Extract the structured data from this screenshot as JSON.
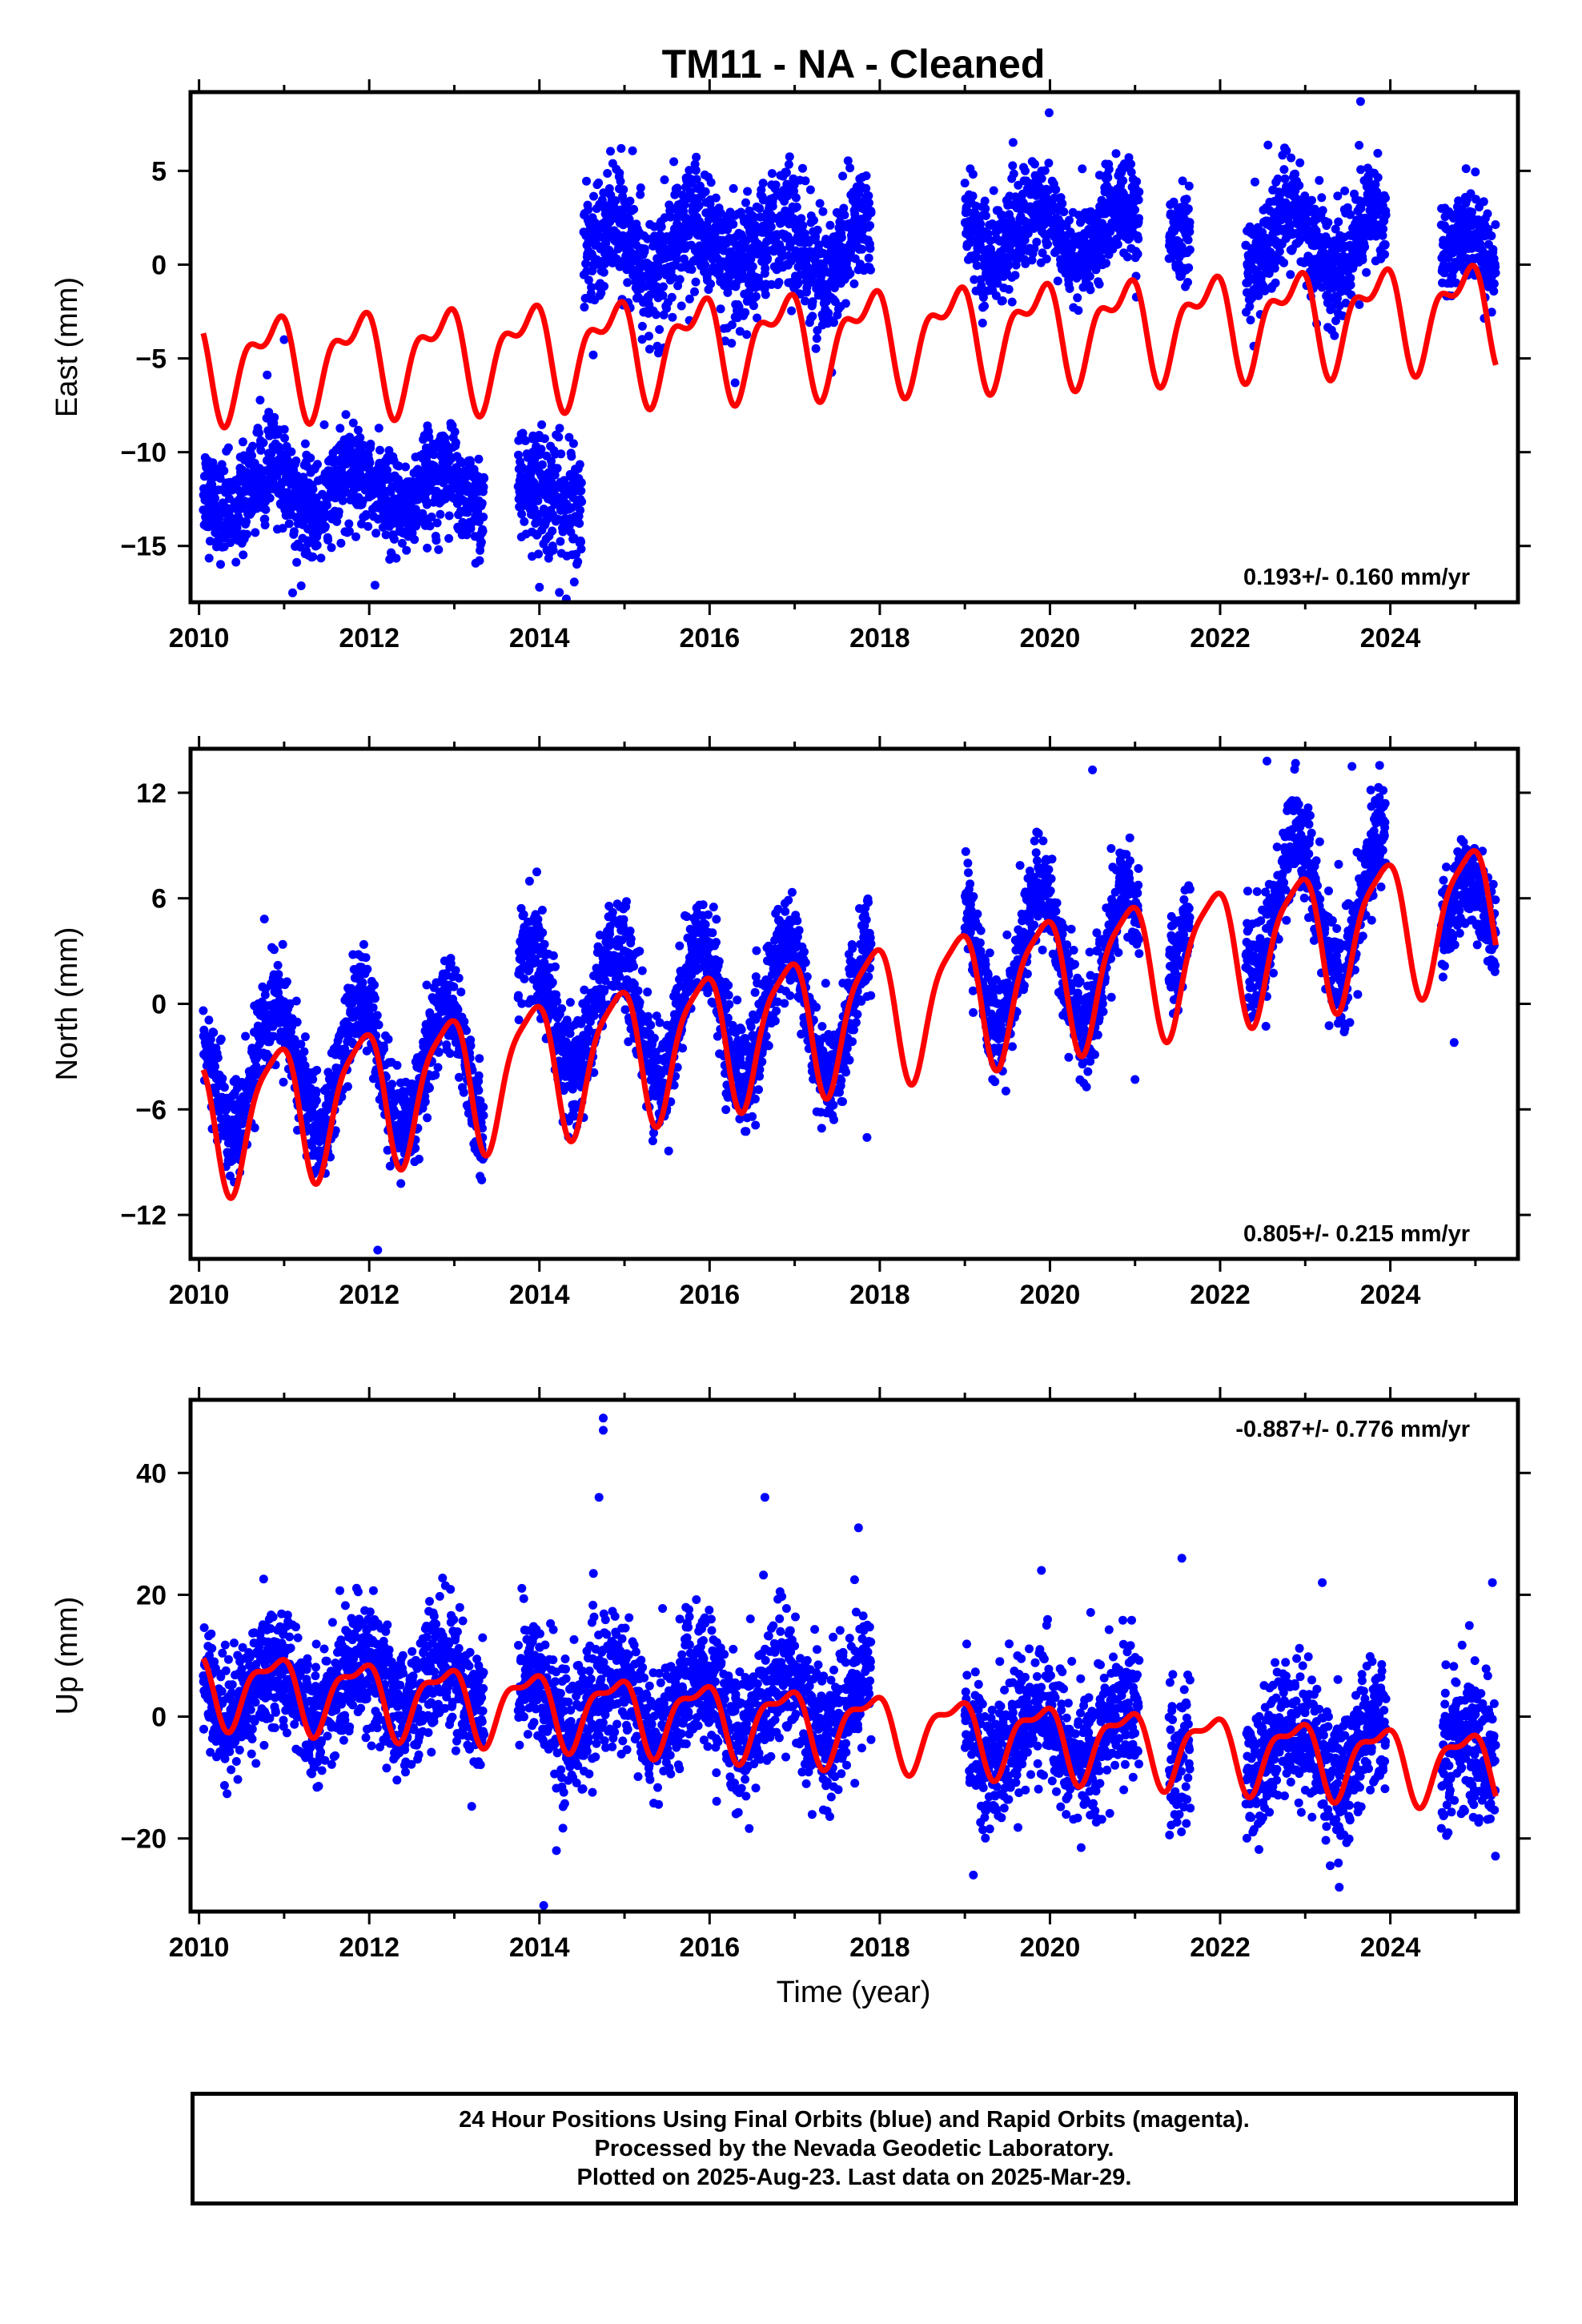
{
  "title": "TM11  - NA - Cleaned",
  "x_axis_label": "Time (year)",
  "footer": {
    "line1": "24 Hour Positions Using Final Orbits (blue) and Rapid Orbits (magenta).",
    "line2": "Processed by the Nevada Geodetic Laboratory.",
    "line3": "Plotted on 2025-Aug-23. Last data on 2025-Mar-29."
  },
  "colors": {
    "points": "#0000ff",
    "model": "#ff0000",
    "frame": "#000000"
  },
  "chart_data": [
    {
      "type": "scatter",
      "component": "east",
      "ylabel": "East (mm)",
      "rate_label": "0.193+/- 0.160 mm/yr",
      "rate_position": "bottom-right",
      "xlim": [
        2009.9,
        2025.5
      ],
      "ylim": [
        -18,
        9.2
      ],
      "x_ticks": [
        2010,
        2012,
        2014,
        2016,
        2018,
        2020,
        2022,
        2024
      ],
      "y_ticks": [
        -15,
        -10,
        -5,
        0,
        5
      ],
      "gaps": [
        [
          2013.35,
          2013.75
        ],
        [
          2014.5,
          2014.52
        ],
        [
          2017.9,
          2019.0
        ],
        [
          2020.0,
          2020.02
        ],
        [
          2021.05,
          2021.4
        ],
        [
          2021.65,
          2022.3
        ],
        [
          2023.95,
          2024.6
        ]
      ],
      "segments": [
        {
          "x_start": 2010.05,
          "x_end": 2013.35,
          "center": -12.0,
          "seasonal_amp": 1.2,
          "scatter": 1.3
        },
        {
          "x_start": 2013.75,
          "x_end": 2014.5,
          "center": -12.2,
          "seasonal_amp": 0.6,
          "scatter": 1.6
        },
        {
          "x_start": 2014.52,
          "x_end": 2017.9,
          "center": 0.8,
          "seasonal_amp": 1.4,
          "scatter": 1.6
        },
        {
          "x_start": 2019.0,
          "x_end": 2021.05,
          "center": 1.7,
          "seasonal_amp": 1.3,
          "scatter": 1.3
        },
        {
          "x_start": 2021.4,
          "x_end": 2021.65,
          "center": 1.8,
          "seasonal_amp": 0.8,
          "scatter": 1.2
        },
        {
          "x_start": 2022.3,
          "x_end": 2023.95,
          "center": 1.3,
          "seasonal_amp": 1.5,
          "scatter": 1.4
        },
        {
          "x_start": 2024.6,
          "x_end": 2025.24,
          "center": 0.6,
          "seasonal_amp": 1.0,
          "scatter": 1.2
        }
      ],
      "outliers": [
        [
          2011.1,
          -17.5
        ],
        [
          2014.0,
          -17.2
        ],
        [
          2016.3,
          -6.3
        ],
        [
          2019.99,
          8.1
        ],
        [
          2023.65,
          8.7
        ],
        [
          2011.0,
          -4.0
        ]
      ],
      "model": {
        "offset": -3.9,
        "trend": 0.193,
        "epoch": 2017.5,
        "annual_amp": 2.3,
        "annual_phase": 2.6,
        "semiannual_amp": 1.2,
        "semiannual_phase": 1.2
      }
    },
    {
      "type": "scatter",
      "component": "north",
      "ylabel": "North (mm)",
      "rate_label": "0.805+/- 0.215 mm/yr",
      "rate_position": "bottom-right",
      "xlim": [
        2009.9,
        2025.5
      ],
      "ylim": [
        -14.5,
        14.5
      ],
      "x_ticks": [
        2010,
        2012,
        2014,
        2016,
        2018,
        2020,
        2022,
        2024
      ],
      "y_ticks": [
        -12,
        -6,
        0,
        6,
        12
      ],
      "gaps": [
        [
          2017.9,
          2019.0
        ],
        [
          2021.05,
          2021.4
        ],
        [
          2021.65,
          2022.3
        ],
        [
          2023.95,
          2024.6
        ]
      ],
      "segments": [
        {
          "x_start": 2010.05,
          "x_end": 2013.35,
          "center": -3.6,
          "seasonal_amp": 3.6,
          "scatter": 1.4
        },
        {
          "x_start": 2013.75,
          "x_end": 2017.9,
          "center": -0.5,
          "seasonal_amp": 3.8,
          "scatter": 1.5
        },
        {
          "x_start": 2019.0,
          "x_end": 2021.05,
          "center": 2.6,
          "seasonal_amp": 3.8,
          "scatter": 1.4
        },
        {
          "x_start": 2021.4,
          "x_end": 2021.65,
          "center": 5.5,
          "seasonal_amp": 3.0,
          "scatter": 1.4
        },
        {
          "x_start": 2022.3,
          "x_end": 2023.95,
          "center": 5.5,
          "seasonal_amp": 4.0,
          "scatter": 1.5
        },
        {
          "x_start": 2024.6,
          "x_end": 2025.24,
          "center": 4.5,
          "seasonal_amp": 2.5,
          "scatter": 1.3
        }
      ],
      "outliers": [
        [
          2012.1,
          -14.0
        ],
        [
          2017.85,
          -7.6
        ],
        [
          2021.0,
          -4.3
        ],
        [
          2024.75,
          -2.2
        ],
        [
          2022.55,
          13.8
        ],
        [
          2023.55,
          13.5
        ],
        [
          2020.5,
          13.3
        ]
      ],
      "model": {
        "offset": -0.7,
        "trend": 0.805,
        "epoch": 2017.5,
        "annual_amp": 3.8,
        "annual_phase": 2.2,
        "semiannual_amp": 0.9,
        "semiannual_phase": 0.3
      }
    },
    {
      "type": "scatter",
      "component": "up",
      "ylabel": "Up (mm)",
      "rate_label": "-0.887+/- 0.776 mm/yr",
      "rate_position": "top-right",
      "xlim": [
        2009.9,
        2025.5
      ],
      "ylim": [
        -32,
        52
      ],
      "x_ticks": [
        2010,
        2012,
        2014,
        2016,
        2018,
        2020,
        2022,
        2024
      ],
      "y_ticks": [
        -20,
        0,
        20,
        40
      ],
      "gaps": [
        [
          2013.35,
          2013.75
        ],
        [
          2017.9,
          2019.0
        ],
        [
          2021.05,
          2021.4
        ],
        [
          2021.65,
          2022.3
        ],
        [
          2023.95,
          2024.6
        ]
      ],
      "segments": [
        {
          "x_start": 2010.05,
          "x_end": 2013.35,
          "center": 4.5,
          "seasonal_amp": 4.5,
          "scatter": 5.0
        },
        {
          "x_start": 2013.75,
          "x_end": 2017.9,
          "center": 2.0,
          "seasonal_amp": 4.5,
          "scatter": 5.5
        },
        {
          "x_start": 2019.0,
          "x_end": 2021.05,
          "center": -3.0,
          "seasonal_amp": 4.5,
          "scatter": 5.5
        },
        {
          "x_start": 2021.4,
          "x_end": 2021.65,
          "center": -5.0,
          "seasonal_amp": 3.0,
          "scatter": 6.0
        },
        {
          "x_start": 2022.3,
          "x_end": 2023.95,
          "center": -5.5,
          "seasonal_amp": 4.5,
          "scatter": 5.5
        },
        {
          "x_start": 2024.6,
          "x_end": 2025.24,
          "center": -6.5,
          "seasonal_amp": 3.5,
          "scatter": 6.0
        }
      ],
      "outliers": [
        [
          2014.75,
          49
        ],
        [
          2014.75,
          47
        ],
        [
          2014.7,
          36
        ],
        [
          2016.65,
          36
        ],
        [
          2017.75,
          31
        ],
        [
          2014.05,
          -31
        ],
        [
          2019.9,
          24
        ],
        [
          2021.55,
          26
        ],
        [
          2025.2,
          22
        ],
        [
          2023.2,
          22
        ],
        [
          2014.2,
          -22
        ],
        [
          2019.1,
          -26
        ],
        [
          2023.4,
          -28
        ]
      ],
      "model": {
        "offset": -1.4,
        "trend": -0.887,
        "epoch": 2017.5,
        "annual_amp": 5.5,
        "annual_phase": 2.4,
        "semiannual_amp": 2.2,
        "semiannual_phase": 0.6
      }
    }
  ]
}
